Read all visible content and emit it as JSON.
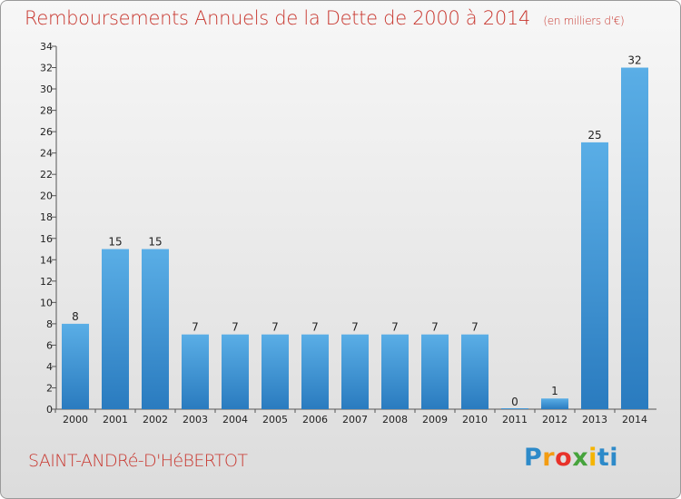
{
  "header": {
    "title": "Remboursements Annuels de la Dette de 2000 à 2014",
    "subtitle": "(en milliers d'€)"
  },
  "footer": {
    "commune": "SAINT-ANDRé-D'HéBERTOT",
    "logo_letters": [
      "P",
      "r",
      "o",
      "x",
      "i",
      "ti"
    ]
  },
  "colors": {
    "title": "#c8362e",
    "bar_light": "#5aaee6",
    "bar_dark": "#2a7bbf"
  },
  "chart_data": {
    "type": "bar",
    "title": "Remboursements Annuels de la Dette de 2000 à 2014",
    "subtitle": "(en milliers d'€)",
    "categories": [
      "2000",
      "2001",
      "2002",
      "2003",
      "2004",
      "2005",
      "2006",
      "2007",
      "2008",
      "2009",
      "2010",
      "2011",
      "2012",
      "2013",
      "2014"
    ],
    "values": [
      8,
      15,
      15,
      7,
      7,
      7,
      7,
      7,
      7,
      7,
      7,
      0,
      1,
      25,
      32
    ],
    "data_labels": [
      "8",
      "15",
      "15",
      "7",
      "7",
      "7",
      "7",
      "7",
      "7",
      "7",
      "7",
      "0",
      "1",
      "25",
      "32"
    ],
    "xlabel": "",
    "ylabel": "",
    "ylim": [
      0,
      34
    ],
    "yticks": [
      0,
      2,
      4,
      6,
      8,
      10,
      12,
      14,
      16,
      18,
      20,
      22,
      24,
      26,
      28,
      30,
      32,
      34
    ],
    "grid": false,
    "legend": "none"
  }
}
